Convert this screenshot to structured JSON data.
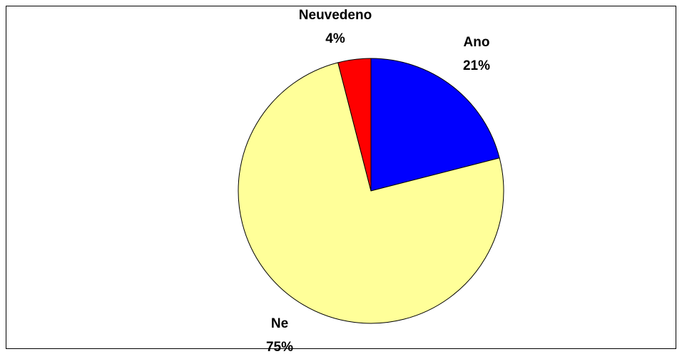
{
  "chart_data": {
    "type": "pie",
    "categories": [
      "Ano",
      "Ne",
      "Neuvedeno"
    ],
    "values": [
      21,
      75,
      4
    ],
    "value_labels": [
      "21%",
      "75%",
      "4%"
    ],
    "colors": [
      "#0000ff",
      "#ffff99",
      "#ff0000"
    ]
  }
}
